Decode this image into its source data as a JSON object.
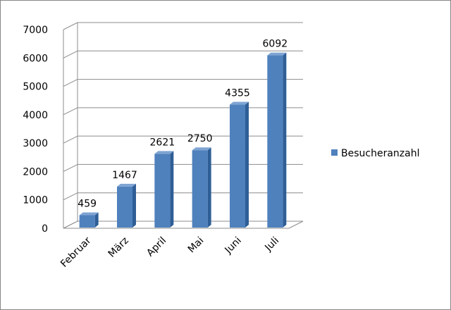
{
  "chart_data": {
    "type": "bar",
    "categories": [
      "Februar",
      "März",
      "April",
      "Mai",
      "Juni",
      "Juli"
    ],
    "series": [
      {
        "name": "Besucheranzahl",
        "values": [
          459,
          1467,
          2621,
          2750,
          4355,
          6092
        ],
        "color": "#4F81BD"
      }
    ],
    "title": "",
    "xlabel": "",
    "ylabel": "",
    "ylim": [
      0,
      7000
    ],
    "yticks": [
      0,
      1000,
      2000,
      3000,
      4000,
      5000,
      6000,
      7000
    ],
    "grid": true,
    "legend_position": "right",
    "style": "3d-column"
  }
}
